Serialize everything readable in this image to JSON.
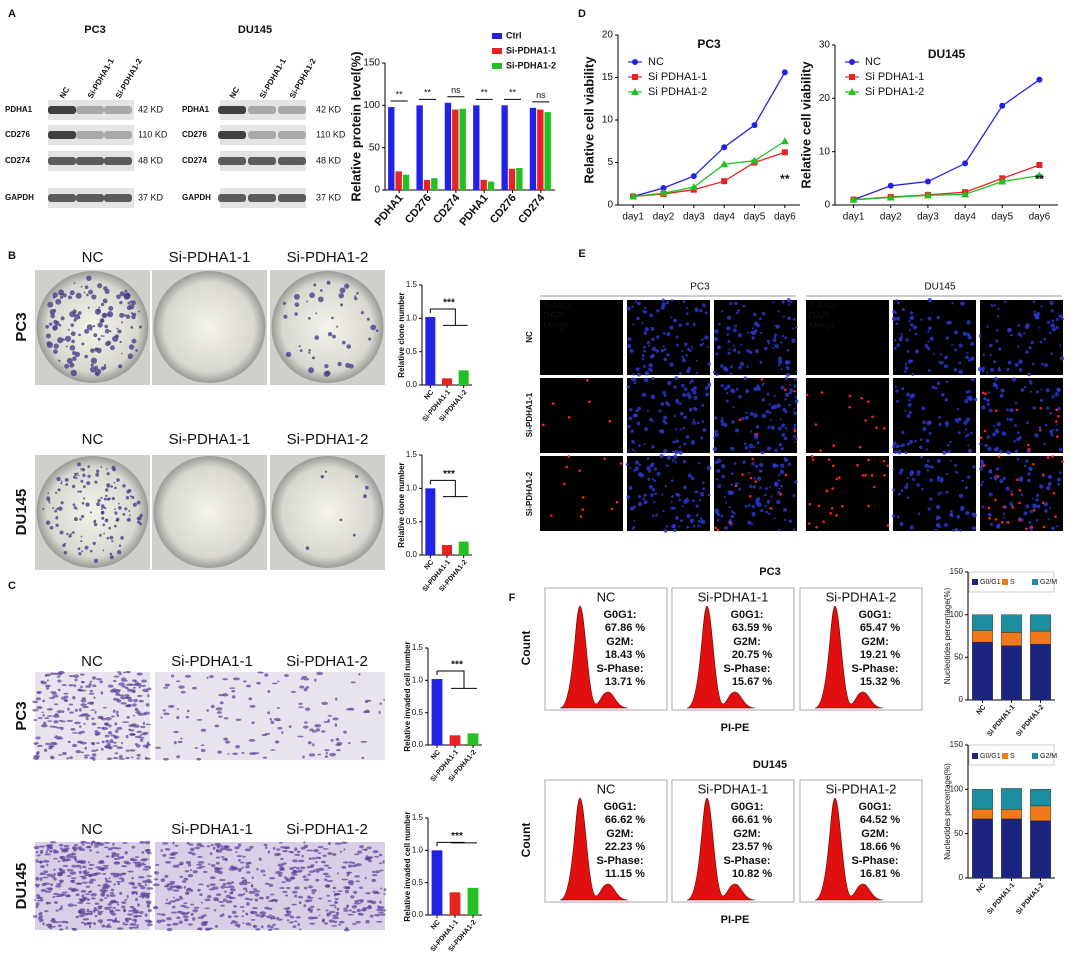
{
  "figure": {
    "panel_labels": [
      "A",
      "B",
      "C",
      "D",
      "E",
      "F"
    ],
    "western": {
      "cells": [
        "PC3",
        "DU145"
      ],
      "lanes": [
        "NC",
        "Si-PDHA1-1",
        "Si-PDHA1-2"
      ],
      "proteins": [
        "PDHA1",
        "CD276",
        "CD274",
        "GAPDH"
      ],
      "sizes": [
        "42 KD",
        "110 KD",
        "48 KD",
        "37 KD"
      ]
    },
    "groups": [
      "NC",
      "Si-PDHA1-1",
      "Si-PDHA1-2"
    ],
    "rows": [
      "PC3",
      "DU145"
    ],
    "fluorescence": {
      "cells": [
        "PC3",
        "DU145"
      ],
      "stains": [
        "7-AAD",
        "DAPI",
        "Merge"
      ],
      "rows": [
        "NC",
        "Si-PDHA1-1",
        "Si-PDHA1-2"
      ]
    },
    "flow": {
      "cells": [
        "PC3",
        "DU145"
      ],
      "groups": [
        "NC",
        "Si-PDHA1-1",
        "Si-PDHA1-2"
      ],
      "ylabel": "Count",
      "xlabel": "PI-PE",
      "fields": [
        "G0G1:",
        "G2M:",
        "S-Phase:"
      ],
      "stats": [
        [
          [
            "67.86 %",
            "18.43 %",
            "13.71 %"
          ],
          [
            "63.59 %",
            "20.75 %",
            "15.67 %"
          ],
          [
            "65.47 %",
            "19.21 %",
            "15.32 %"
          ]
        ],
        [
          [
            "66.62 %",
            "22.23 %",
            "11.15 %"
          ],
          [
            "66.61 %",
            "23.57 %",
            "10.82 %"
          ],
          [
            "64.52 %",
            "18.66 %",
            "16.81 %"
          ]
        ]
      ]
    }
  },
  "chart_data": [
    {
      "type": "grouped_bar",
      "ylabel": "Relative protein level(%)",
      "categories": [
        "PDHA1",
        "CD276",
        "CD274",
        "PDHA1",
        "CD276",
        "CD274"
      ],
      "series": [
        {
          "name": "Ctrl",
          "color": "#2222e6",
          "values": [
            98,
            100,
            103,
            100,
            100,
            97
          ]
        },
        {
          "name": "Si-PDHA1-1",
          "color": "#e62222",
          "values": [
            22,
            12,
            95,
            12,
            25,
            95
          ]
        },
        {
          "name": "Si-PDHA1-2",
          "color": "#22c022",
          "values": [
            18,
            14,
            96,
            10,
            26,
            92
          ]
        }
      ],
      "ylim": [
        0,
        150
      ],
      "yticks": [
        0,
        50,
        100,
        150
      ],
      "annotations": [
        "**",
        "**",
        "ns",
        "**",
        "**",
        "ns"
      ],
      "legend": "upper right"
    },
    {
      "type": "line",
      "title": "PC3",
      "ylabel": "Relative cell viability",
      "categories": [
        "day1",
        "day2",
        "day3",
        "day4",
        "day5",
        "day6"
      ],
      "series": [
        {
          "name": "NC",
          "color": "#2222e6",
          "marker": "circle",
          "values": [
            1,
            2,
            3.4,
            6.8,
            9.4,
            15.6
          ]
        },
        {
          "name": "Si PDHA1-1",
          "color": "#e62222",
          "marker": "square",
          "values": [
            1,
            1.3,
            1.8,
            2.8,
            5,
            6.2
          ]
        },
        {
          "name": "Si PDHA1-2",
          "color": "#22c022",
          "marker": "triangle",
          "values": [
            1,
            1.4,
            2.1,
            4.8,
            5.2,
            7.5
          ]
        }
      ],
      "ylim": [
        0,
        20
      ],
      "yticks": [
        0,
        5,
        10,
        15,
        20
      ],
      "annotation": "**",
      "legend": "upper left"
    },
    {
      "type": "line",
      "title": "DU145",
      "ylabel": "Relative cell viability",
      "categories": [
        "day1",
        "day2",
        "day3",
        "day4",
        "day5",
        "day6"
      ],
      "series": [
        {
          "name": "NC",
          "color": "#2222e6",
          "marker": "circle",
          "values": [
            1,
            3.6,
            4.4,
            7.8,
            18.6,
            23.5
          ]
        },
        {
          "name": "Si PDHA1-1",
          "color": "#e62222",
          "marker": "square",
          "values": [
            1,
            1.5,
            1.9,
            2.4,
            5,
            7.5
          ]
        },
        {
          "name": "Si PDHA1-2",
          "color": "#22c022",
          "marker": "triangle",
          "values": [
            1,
            1.4,
            1.8,
            2,
            4.4,
            5.5
          ]
        }
      ],
      "ylim": [
        0,
        30
      ],
      "yticks": [
        0,
        10,
        20,
        30
      ],
      "annotation": "**",
      "legend": "upper left"
    },
    {
      "type": "bar",
      "ylabel": "Relative clone number",
      "categories": [
        "NC",
        "Si-PDHA1-1",
        "Si-PDHA1-2"
      ],
      "values": [
        1.02,
        0.1,
        0.22
      ],
      "colors": [
        "#2222e6",
        "#e62222",
        "#22c022"
      ],
      "ylim": [
        0,
        1.5
      ],
      "yticks": [
        {
          "value": 0,
          "label": "0.0"
        },
        {
          "value": 0.5,
          "label": "0.5"
        },
        {
          "value": 1,
          "label": "1.0"
        },
        {
          "value": 1.5,
          "label": "1.5"
        }
      ],
      "annotation": "***"
    },
    {
      "type": "bar",
      "ylabel": "Relative clone number",
      "categories": [
        "NC",
        "Si-PDHA1-1",
        "Si-PDHA1-2"
      ],
      "values": [
        1.0,
        0.15,
        0.2
      ],
      "colors": [
        "#2222e6",
        "#e62222",
        "#22c022"
      ],
      "ylim": [
        0,
        1.5
      ],
      "yticks": [
        {
          "value": 0,
          "label": "0.0"
        },
        {
          "value": 0.5,
          "label": "0.5"
        },
        {
          "value": 1,
          "label": "1.0"
        },
        {
          "value": 1.5,
          "label": "1.5"
        }
      ],
      "annotation": "***"
    },
    {
      "type": "bar",
      "ylabel": "Relative invaded cell number",
      "categories": [
        "NC",
        "Si-PDHA1-1",
        "Si-PDHA1-2"
      ],
      "values": [
        1.02,
        0.15,
        0.18
      ],
      "colors": [
        "#2222e6",
        "#e62222",
        "#22c022"
      ],
      "ylim": [
        0,
        1.5
      ],
      "yticks": [
        {
          "value": 0,
          "label": "0.0"
        },
        {
          "value": 0.5,
          "label": "0.5"
        },
        {
          "value": 1,
          "label": "1.0"
        },
        {
          "value": 1.5,
          "label": "1.5"
        }
      ],
      "annotation": "***"
    },
    {
      "type": "bar",
      "ylabel": "Relative invaded cell number",
      "categories": [
        "NC",
        "Si-PDHA1-1",
        "Si-PDHA1-2"
      ],
      "values": [
        1.0,
        0.35,
        0.42
      ],
      "colors": [
        "#2222e6",
        "#e62222",
        "#22c022"
      ],
      "ylim": [
        0,
        1.5
      ],
      "yticks": [
        {
          "value": 0,
          "label": "0.0"
        },
        {
          "value": 0.5,
          "label": "0.5"
        },
        {
          "value": 1,
          "label": "1.0"
        },
        {
          "value": 1.5,
          "label": "1.5"
        }
      ],
      "annotation": "***"
    },
    {
      "type": "stacked_bar",
      "ylabel": "Nucleotides percentage(%)",
      "categories": [
        "NC",
        "Si PDHA1-1",
        "Si PDHA1-2"
      ],
      "series": [
        {
          "name": "G0/G1",
          "color": "#1b2580",
          "values": [
            67.86,
            63.59,
            65.47
          ]
        },
        {
          "name": "S",
          "color": "#f07a1a",
          "values": [
            13.71,
            15.67,
            15.32
          ]
        },
        {
          "name": "G2/M",
          "color": "#1b8fa0",
          "values": [
            18.43,
            20.75,
            19.21
          ]
        }
      ],
      "ylim": [
        0,
        150
      ],
      "yticks": [
        0,
        50,
        100,
        150
      ],
      "legend": "upper center"
    },
    {
      "type": "stacked_bar",
      "ylabel": "Nucleotides percentage(%)",
      "categories": [
        "NC",
        "Si PDHA1-1",
        "Si PDHA1-2"
      ],
      "series": [
        {
          "name": "G0/G1",
          "color": "#1b2580",
          "values": [
            66.62,
            66.61,
            64.52
          ]
        },
        {
          "name": "S",
          "color": "#f07a1a",
          "values": [
            11.15,
            10.82,
            16.81
          ]
        },
        {
          "name": "G2/M",
          "color": "#1b8fa0",
          "values": [
            22.23,
            23.57,
            18.66
          ]
        }
      ],
      "ylim": [
        0,
        150
      ],
      "yticks": [
        0,
        50,
        100,
        150
      ],
      "legend": "upper center"
    }
  ]
}
